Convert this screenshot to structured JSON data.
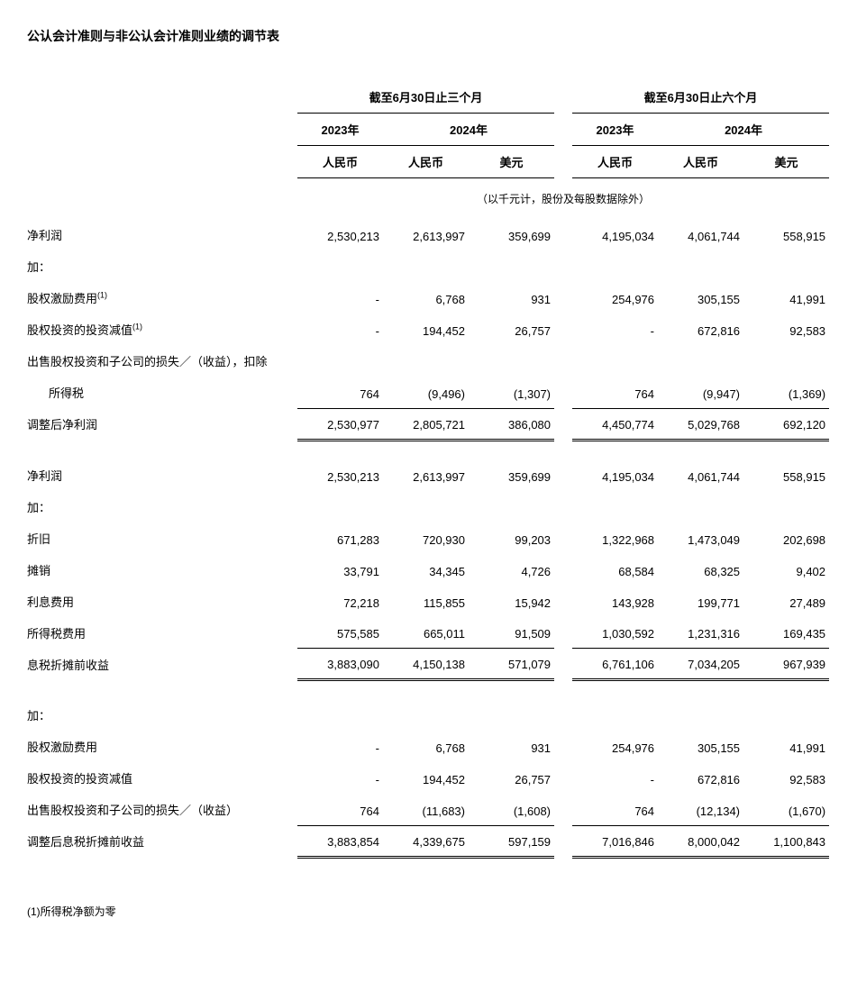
{
  "title": "公认会计准则与非公认会计准则业绩的调节表",
  "periods": {
    "three_months": "截至6月30日止三个月",
    "six_months": "截至6月30日止六个月"
  },
  "years": {
    "y2023": "2023年",
    "y2024": "2024年"
  },
  "currencies": {
    "rmb": "人民币",
    "usd": "美元"
  },
  "unit_note": "（以千元计，股份及每股数据除外）",
  "labels": {
    "net_income": "净利润",
    "add": "加：",
    "sbc": "股权激励费用",
    "sup1": "(1)",
    "impairment": "股权投资的投资减值",
    "disposal_net_tax_line1": "出售股权投资和子公司的损失／（收益），扣除",
    "disposal_net_tax_line2": "所得税",
    "adj_net_income": "调整后净利润",
    "depreciation": "折旧",
    "amortization": "摊销",
    "interest_expense": "利息费用",
    "income_tax_expense": "所得税费用",
    "ebitda": "息税折摊前收益",
    "disposal_gain_loss": "出售股权投资和子公司的损失／（收益）",
    "adj_ebitda": "调整后息税折摊前收益"
  },
  "footnote": "(1)所得税净额为零",
  "data": {
    "net_income": [
      "2,530,213",
      "2,613,997",
      "359,699",
      "4,195,034",
      "4,061,744",
      "558,915"
    ],
    "sbc": [
      "-",
      "6,768",
      "931",
      "254,976",
      "305,155",
      "41,991"
    ],
    "impairment": [
      "-",
      "194,452",
      "26,757",
      "-",
      "672,816",
      "92,583"
    ],
    "disposal_net_tax": [
      "764",
      "(9,496)",
      "(1,307)",
      "764",
      "(9,947)",
      "(1,369)"
    ],
    "adj_net_income": [
      "2,530,977",
      "2,805,721",
      "386,080",
      "4,450,774",
      "5,029,768",
      "692,120"
    ],
    "net_income2": [
      "2,530,213",
      "2,613,997",
      "359,699",
      "4,195,034",
      "4,061,744",
      "558,915"
    ],
    "depreciation": [
      "671,283",
      "720,930",
      "99,203",
      "1,322,968",
      "1,473,049",
      "202,698"
    ],
    "amortization": [
      "33,791",
      "34,345",
      "4,726",
      "68,584",
      "68,325",
      "9,402"
    ],
    "interest_expense": [
      "72,218",
      "115,855",
      "15,942",
      "143,928",
      "199,771",
      "27,489"
    ],
    "income_tax_expense": [
      "575,585",
      "665,011",
      "91,509",
      "1,030,592",
      "1,231,316",
      "169,435"
    ],
    "ebitda": [
      "3,883,090",
      "4,150,138",
      "571,079",
      "6,761,106",
      "7,034,205",
      "967,939"
    ],
    "sbc2": [
      "-",
      "6,768",
      "931",
      "254,976",
      "305,155",
      "41,991"
    ],
    "impairment2": [
      "-",
      "194,452",
      "26,757",
      "-",
      "672,816",
      "92,583"
    ],
    "disposal2": [
      "764",
      "(11,683)",
      "(1,608)",
      "764",
      "(12,134)",
      "(1,670)"
    ],
    "adj_ebitda": [
      "3,883,854",
      "4,339,675",
      "597,159",
      "7,016,846",
      "8,000,042",
      "1,100,843"
    ]
  }
}
